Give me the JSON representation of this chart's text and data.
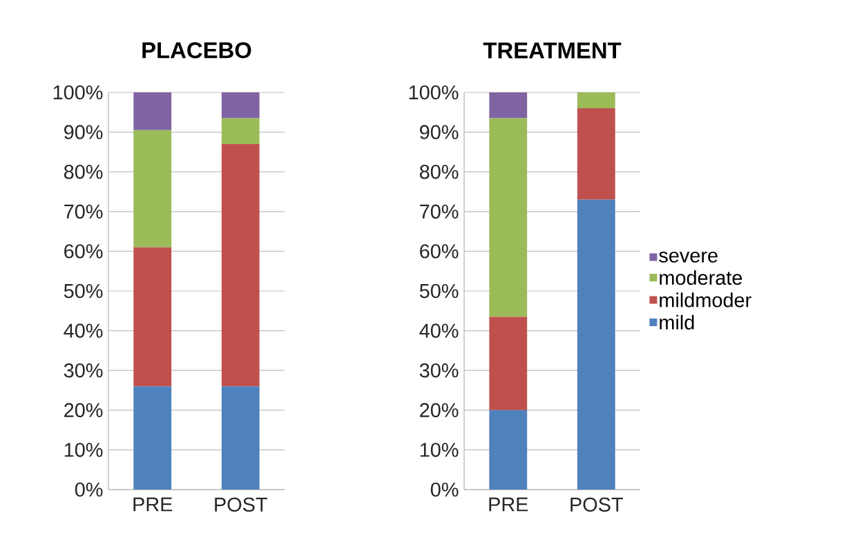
{
  "chart_data": [
    {
      "type": "bar",
      "title": "PLACEBO",
      "categories": [
        "PRE",
        "POST"
      ],
      "stacked": true,
      "grid": "y",
      "ylim": [
        0,
        100
      ],
      "yticks": [
        {
          "value": 0,
          "label": "0%"
        },
        {
          "value": 10,
          "label": "10%"
        },
        {
          "value": 20,
          "label": "20%"
        },
        {
          "value": 30,
          "label": "30%"
        },
        {
          "value": 40,
          "label": "40%"
        },
        {
          "value": 50,
          "label": "50%"
        },
        {
          "value": 60,
          "label": "60%"
        },
        {
          "value": 70,
          "label": "70%"
        },
        {
          "value": 80,
          "label": "80%"
        },
        {
          "value": 90,
          "label": "90%"
        },
        {
          "value": 100,
          "label": "100%"
        }
      ],
      "series": [
        {
          "color": "#4f81bd",
          "values": [
            26,
            26
          ]
        },
        {
          "color": "#c0504d",
          "values": [
            35,
            61
          ]
        },
        {
          "color": "#9bbb59",
          "values": [
            29.5,
            6.5
          ]
        },
        {
          "color": "#8064a2",
          "values": [
            9.5,
            6.5
          ]
        }
      ]
    },
    {
      "type": "bar",
      "title": "TREATMENT",
      "categories": [
        "PRE",
        "POST"
      ],
      "stacked": true,
      "grid": "y",
      "legend": "right",
      "ylim": [
        0,
        100
      ],
      "yticks": [
        {
          "value": 0,
          "label": "0%"
        },
        {
          "value": 10,
          "label": "10%"
        },
        {
          "value": 20,
          "label": "20%"
        },
        {
          "value": 30,
          "label": "30%"
        },
        {
          "value": 40,
          "label": "40%"
        },
        {
          "value": 50,
          "label": "50%"
        },
        {
          "value": 60,
          "label": "60%"
        },
        {
          "value": 70,
          "label": "70%"
        },
        {
          "value": 80,
          "label": "80%"
        },
        {
          "value": 90,
          "label": "90%"
        },
        {
          "value": 100,
          "label": "100%"
        }
      ],
      "series": [
        {
          "name": "mild",
          "color": "#4f81bd",
          "values": [
            20,
            73
          ]
        },
        {
          "name": "mildmoder",
          "color": "#c0504d",
          "values": [
            23.5,
            23
          ]
        },
        {
          "name": "moderate",
          "color": "#9bbb59",
          "values": [
            50,
            4
          ]
        },
        {
          "name": "severe",
          "color": "#8064a2",
          "values": [
            6.5,
            0
          ]
        }
      ]
    }
  ]
}
